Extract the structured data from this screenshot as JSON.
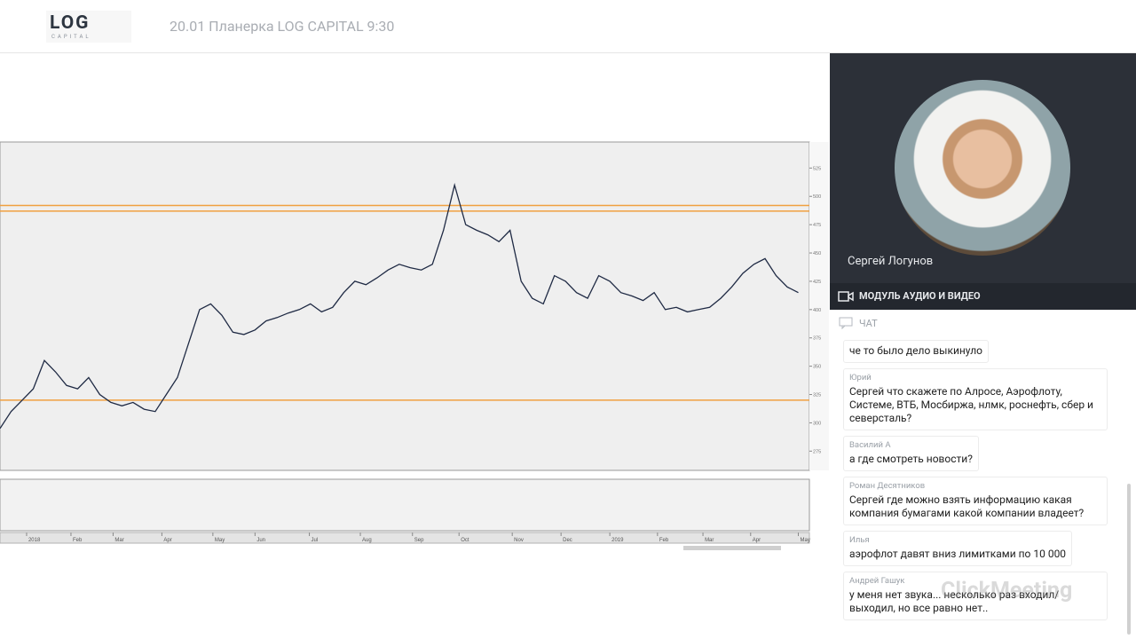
{
  "header": {
    "logo": "LOG",
    "logo_sub": "CAPITAL",
    "title": "20.01 Планерка LOG CAPITAL 9:30"
  },
  "chart_data": {
    "type": "line",
    "x": [
      0,
      1,
      2,
      3,
      4,
      5,
      6,
      7,
      8,
      9,
      10,
      11,
      12,
      13,
      14,
      15,
      16,
      17,
      18,
      19,
      20,
      21,
      22,
      23,
      24,
      25,
      26,
      27,
      28,
      29,
      30,
      31,
      32,
      33,
      34,
      35,
      36,
      37,
      38,
      39,
      40,
      41,
      42,
      43,
      44,
      45,
      46,
      47,
      48,
      49,
      50,
      51,
      52,
      53,
      54,
      55,
      56,
      57,
      58,
      59,
      60,
      61,
      62,
      63,
      64,
      65,
      66,
      67,
      68,
      69,
      70,
      71,
      72
    ],
    "series": [
      {
        "color": "#1f2a44",
        "values": [
          295,
          310,
          320,
          330,
          355,
          345,
          333,
          330,
          340,
          325,
          318,
          315,
          318,
          312,
          310,
          325,
          340,
          370,
          400,
          405,
          395,
          380,
          378,
          382,
          390,
          393,
          397,
          400,
          405,
          398,
          402,
          415,
          425,
          422,
          428,
          435,
          440,
          437,
          435,
          440,
          470,
          510,
          475,
          470,
          466,
          460,
          470,
          425,
          410,
          405,
          430,
          425,
          415,
          410,
          430,
          425,
          415,
          412,
          408,
          415,
          400,
          402,
          398,
          400,
          402,
          410,
          420,
          432,
          440,
          445,
          430,
          420,
          415
        ]
      }
    ],
    "levels": [
      492,
      487,
      320
    ],
    "level_color": "#f0a040",
    "xlim": [
      0,
      73
    ],
    "ylim": [
      258,
      548
    ],
    "yticks": [
      275,
      300,
      325,
      350,
      375,
      400,
      425,
      450,
      475,
      500,
      525
    ],
    "xticks": [
      {
        "value": 2.4,
        "label": "2018"
      },
      {
        "value": 6.4,
        "label": "Feb"
      },
      {
        "value": 10.2,
        "label": "Mar"
      },
      {
        "value": 14.6,
        "label": "Apr"
      },
      {
        "value": 19.2,
        "label": "May"
      },
      {
        "value": 23,
        "label": "Jun"
      },
      {
        "value": 27.9,
        "label": "Jul"
      },
      {
        "value": 32.5,
        "label": "Aug"
      },
      {
        "value": 37.2,
        "label": "Sep"
      },
      {
        "value": 41.4,
        "label": "Oct"
      },
      {
        "value": 46.2,
        "label": "Nov"
      },
      {
        "value": 50.6,
        "label": "Dec"
      },
      {
        "value": 55,
        "label": "2019"
      },
      {
        "value": 59.3,
        "label": "Feb"
      },
      {
        "value": 63.4,
        "label": "Mar"
      },
      {
        "value": 67.7,
        "label": "Apr"
      },
      {
        "value": 72,
        "label": "May"
      }
    ]
  },
  "video": {
    "speaker": "Сергей Логунов",
    "module": "МОДУЛЬ АУДИО И ВИДЕО"
  },
  "chat": {
    "label": "ЧАТ",
    "watermark": "ClickMeeting",
    "messages": [
      {
        "text": "че то было дело выкинуло"
      },
      {
        "author": "Юрий",
        "text": "Сергей что скажете по Алросе, Аэрофлоту, Системе, ВТБ, Мосбиржа, нлмк, роснефть, сбер и северсталь?"
      },
      {
        "author": "Василий А",
        "text": "а где смотреть новости?"
      },
      {
        "author": "Роман Десятников",
        "text": "Сергей где можно взять информацию какая компания бумагами какой компании владеет?"
      },
      {
        "author": "Илья",
        "text": "аэрофлот давят вниз лимитками по 10 000"
      },
      {
        "author": "Андрей Гашук",
        "text": "у меня нет звука... несколько раз входил/ выходил, но все равно нет.."
      }
    ]
  }
}
